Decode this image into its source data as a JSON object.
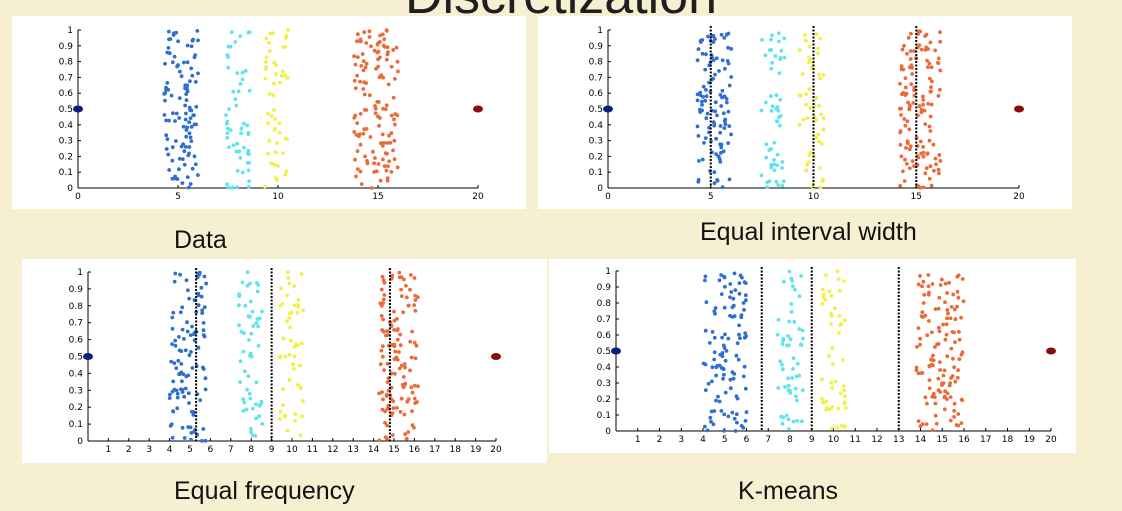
{
  "page": {
    "title": "Discretization"
  },
  "captions": [
    "Data",
    "Equal interval width",
    "Equal frequency",
    "K-means"
  ],
  "colors": {
    "background": "#f7efd2",
    "blue": "#2f6fd0",
    "cyan": "#5fe3ee",
    "yellow": "#f2f046",
    "orange": "#ec6a3a",
    "outlier_left": "#0a1f7a",
    "outlier_right": "#8a0d0d",
    "boundary": "#000000"
  },
  "chart_data": [
    {
      "type": "scatter",
      "title": "Data",
      "xlim": [
        0,
        20
      ],
      "ylim": [
        0,
        1
      ],
      "xticks": [
        0,
        5,
        10,
        15,
        20
      ],
      "yticks": [
        0,
        0.1,
        0.2,
        0.3,
        0.4,
        0.5,
        0.6,
        0.7,
        0.8,
        0.9,
        1
      ],
      "clusters": [
        {
          "color": "blue",
          "x_range": [
            4.3,
            6.0
          ],
          "n": 110
        },
        {
          "color": "cyan",
          "x_range": [
            7.4,
            8.6
          ],
          "n": 55
        },
        {
          "color": "yellow",
          "x_range": [
            9.3,
            10.5
          ],
          "n": 50
        },
        {
          "color": "orange",
          "x_range": [
            13.8,
            16.0
          ],
          "n": 130
        }
      ],
      "outliers": [
        {
          "x": 0,
          "y": 0.5,
          "color": "outlier_left"
        },
        {
          "x": 20,
          "y": 0.5,
          "color": "outlier_right"
        }
      ],
      "boundaries": []
    },
    {
      "type": "scatter",
      "title": "Equal interval width",
      "xlim": [
        0,
        20
      ],
      "ylim": [
        0,
        1
      ],
      "xticks": [
        0,
        5,
        10,
        15,
        20
      ],
      "yticks": [
        0,
        0.1,
        0.2,
        0.3,
        0.4,
        0.5,
        0.6,
        0.7,
        0.8,
        0.9,
        1
      ],
      "clusters": [
        {
          "color": "blue",
          "x_range": [
            4.3,
            6.0
          ],
          "n": 110
        },
        {
          "color": "cyan",
          "x_range": [
            7.4,
            8.6
          ],
          "n": 55
        },
        {
          "color": "yellow",
          "x_range": [
            9.3,
            10.5
          ],
          "n": 50
        },
        {
          "color": "orange",
          "x_range": [
            14.2,
            16.2
          ],
          "n": 130
        }
      ],
      "outliers": [
        {
          "x": 0,
          "y": 0.5,
          "color": "outlier_left"
        },
        {
          "x": 20,
          "y": 0.5,
          "color": "outlier_right"
        }
      ],
      "boundaries": [
        5,
        10,
        15
      ]
    },
    {
      "type": "scatter",
      "title": "Equal frequency",
      "xlim": [
        0,
        20
      ],
      "ylim": [
        0,
        1
      ],
      "xticks": [
        1,
        2,
        3,
        4,
        5,
        6,
        7,
        8,
        9,
        10,
        11,
        12,
        13,
        14,
        15,
        16,
        17,
        18,
        19,
        20
      ],
      "yticks": [
        0,
        0.1,
        0.2,
        0.3,
        0.4,
        0.5,
        0.6,
        0.7,
        0.8,
        0.9,
        1
      ],
      "clusters": [
        {
          "color": "blue",
          "x_range": [
            4.0,
            5.8
          ],
          "n": 110
        },
        {
          "color": "cyan",
          "x_range": [
            7.4,
            8.6
          ],
          "n": 55
        },
        {
          "color": "yellow",
          "x_range": [
            9.4,
            10.6
          ],
          "n": 50
        },
        {
          "color": "orange",
          "x_range": [
            14.2,
            16.2
          ],
          "n": 130
        }
      ],
      "outliers": [
        {
          "x": 0,
          "y": 0.5,
          "color": "outlier_left"
        },
        {
          "x": 20,
          "y": 0.5,
          "color": "outlier_right"
        }
      ],
      "boundaries": [
        5.3,
        9.0,
        14.8
      ]
    },
    {
      "type": "scatter",
      "title": "K-means",
      "xlim": [
        0,
        20
      ],
      "ylim": [
        0,
        1
      ],
      "xticks": [
        1,
        2,
        3,
        4,
        5,
        6,
        7,
        8,
        9,
        10,
        11,
        12,
        13,
        14,
        15,
        16,
        17,
        18,
        19,
        20
      ],
      "yticks": [
        0,
        0.1,
        0.2,
        0.3,
        0.4,
        0.5,
        0.6,
        0.7,
        0.8,
        0.9,
        1
      ],
      "clusters": [
        {
          "color": "blue",
          "x_range": [
            4.0,
            6.0
          ],
          "n": 110
        },
        {
          "color": "cyan",
          "x_range": [
            7.4,
            8.6
          ],
          "n": 55
        },
        {
          "color": "yellow",
          "x_range": [
            9.4,
            10.6
          ],
          "n": 50
        },
        {
          "color": "orange",
          "x_range": [
            13.8,
            16.0
          ],
          "n": 130
        }
      ],
      "outliers": [
        {
          "x": 0,
          "y": 0.5,
          "color": "outlier_left"
        },
        {
          "x": 20,
          "y": 0.5,
          "color": "outlier_right"
        }
      ],
      "boundaries": [
        6.7,
        9.0,
        13.0
      ]
    }
  ]
}
